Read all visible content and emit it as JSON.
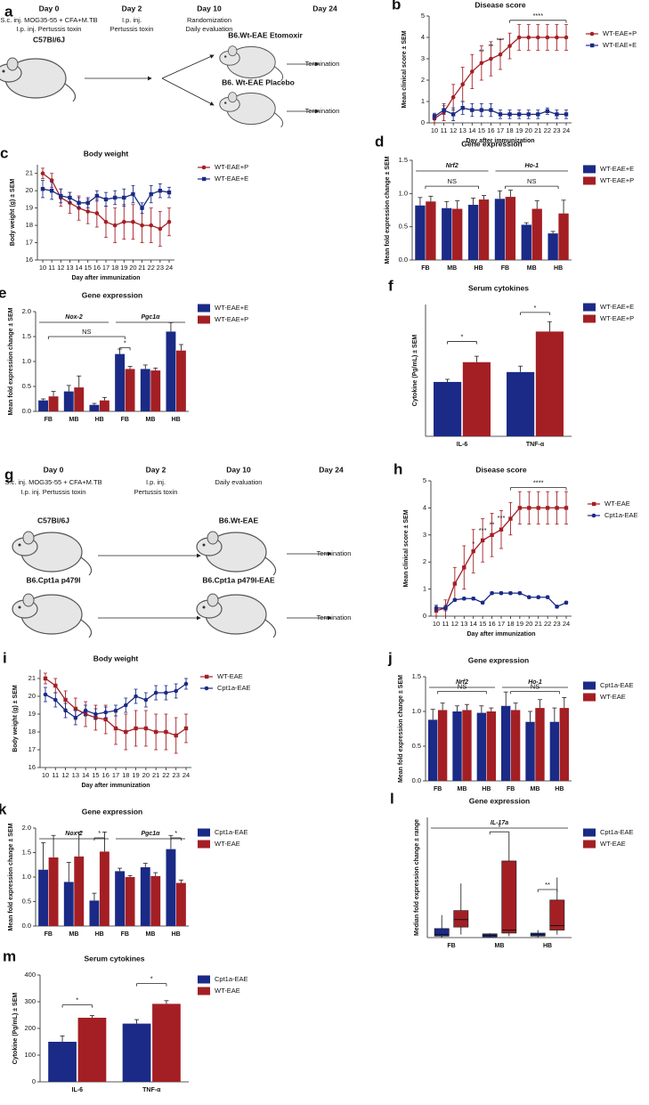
{
  "diagrams": [
    {
      "panel": "a",
      "texts": [
        "Day 0",
        "S.c. inj. MOG35-55 + CFA+M.TB",
        "I.p. inj. Pertussis toxin",
        "C57Bl/6J",
        "Day 2",
        "I.p. inj.",
        "Pertussis toxin",
        "Day 10",
        "Randomization",
        "Daily evaluation",
        "Day 24",
        "B6.Wt-EAE  Etomoxir",
        "B6. Wt-EAE  Placebo",
        "Termination",
        "Termination"
      ]
    },
    {
      "panel": "g",
      "texts": [
        "Day 0",
        "S.c. inj. MOG35-55 + CFA+M.TB",
        "I.p. inj. Pertussis toxin",
        "Day 2",
        "I.p. inj.",
        "Pertussis toxin",
        "Day 10",
        "Daily evaluation",
        "Day 24",
        "C57Bl/6J",
        "B6.Wt-EAE",
        "B6.Cpt1a p479I",
        "B6.Cpt1a p479I-EAE",
        "Termination",
        "Termination"
      ]
    }
  ],
  "chart_data": [
    {
      "type": "line",
      "panel": "b",
      "title": "Disease score",
      "x_label": "Day after immunization",
      "y_label": "Mean clinical score ± SEM",
      "x": [
        10,
        11,
        12,
        13,
        14,
        15,
        16,
        17,
        18,
        19,
        20,
        21,
        22,
        23,
        24
      ],
      "xlim": [
        10,
        24
      ],
      "xticks": [
        10,
        11,
        12,
        13,
        14,
        15,
        16,
        17,
        18,
        19,
        20,
        21,
        22,
        23,
        24
      ],
      "ylim": [
        0,
        5
      ],
      "yticks": [
        0,
        1,
        2,
        3,
        4,
        5
      ],
      "series": [
        {
          "name": "WT-EAE+P",
          "color": "#a31f24",
          "marker": "circle",
          "values": [
            0.2,
            0.5,
            1.2,
            1.8,
            2.4,
            2.8,
            3.0,
            3.2,
            3.6,
            4,
            4,
            4,
            4,
            4,
            4
          ],
          "errors": [
            0.2,
            0.4,
            0.6,
            0.8,
            0.8,
            0.8,
            0.8,
            0.7,
            0.6,
            0.6,
            0.6,
            0.6,
            0.6,
            0.6,
            0.6
          ]
        },
        {
          "name": "WT-EAE+E",
          "color": "#1a2a86",
          "marker": "square",
          "values": [
            0.3,
            0.6,
            0.4,
            0.7,
            0.6,
            0.6,
            0.6,
            0.4,
            0.4,
            0.4,
            0.4,
            0.4,
            0.55,
            0.4,
            0.4
          ],
          "errors": [
            0.15,
            0.2,
            0.3,
            0.3,
            0.3,
            0.3,
            0.3,
            0.2,
            0.2,
            0.2,
            0.2,
            0.2,
            0.15,
            0.2,
            0.2
          ]
        }
      ],
      "annotations": [
        "**",
        "**",
        "***",
        "****"
      ]
    },
    {
      "type": "line",
      "panel": "c",
      "title": "Body weight",
      "x_label": "Day after immunization",
      "y_label": "Body weight (g) ± SEM",
      "x": [
        10,
        11,
        12,
        13,
        14,
        15,
        16,
        17,
        18,
        19,
        20,
        21,
        22,
        23,
        24
      ],
      "xlim": [
        10,
        24
      ],
      "xticks": [
        10,
        11,
        12,
        13,
        14,
        15,
        16,
        17,
        18,
        19,
        20,
        21,
        22,
        23,
        24
      ],
      "ylim": [
        16,
        21.5
      ],
      "yticks": [
        16,
        17,
        18,
        19,
        20,
        21
      ],
      "series": [
        {
          "name": "WT-EAE+P",
          "color": "#a31f24",
          "marker": "circle",
          "values": [
            21.0,
            20.6,
            19.6,
            19.3,
            19.0,
            18.8,
            18.7,
            18.2,
            18.0,
            18.2,
            18.2,
            18.0,
            18.0,
            17.8,
            18.2
          ],
          "errors": [
            0.3,
            0.4,
            0.5,
            0.6,
            0.7,
            0.7,
            0.8,
            0.9,
            1.0,
            1.0,
            1.0,
            1.0,
            1.0,
            1.0,
            0.8
          ]
        },
        {
          "name": "WT-EAE+E",
          "color": "#1a2a86",
          "marker": "square",
          "values": [
            20.1,
            20.0,
            19.7,
            19.6,
            19.3,
            19.3,
            19.7,
            19.5,
            19.6,
            19.6,
            19.8,
            19.0,
            19.8,
            20.0,
            19.9
          ],
          "errors": [
            0.5,
            0.5,
            0.4,
            0.3,
            0.3,
            0.3,
            0.3,
            0.4,
            0.4,
            0.5,
            0.5,
            0.3,
            0.5,
            0.4,
            0.3
          ]
        }
      ],
      "annotations": []
    },
    {
      "type": "bar",
      "panel": "d",
      "title": "Gene expression",
      "y_label": "Mean fold expression change ± SEM",
      "categories": [
        "FB",
        "MB",
        "HB",
        "FB",
        "MB",
        "HB"
      ],
      "groups": [
        "Nrf2",
        "Ho-1"
      ],
      "ylim": [
        0,
        1.5
      ],
      "yticks": [
        {
          "value": 0,
          "label": "0.0"
        },
        {
          "value": 0.5,
          "label": "0.5"
        },
        {
          "value": 1,
          "label": "1.0"
        },
        {
          "value": 1.5,
          "label": "1.5"
        }
      ],
      "series": [
        {
          "name": "WT-EAE+E",
          "color": "#1a2a86",
          "values": [
            0.82,
            0.78,
            0.83,
            0.92,
            0.53,
            0.4
          ],
          "errors": [
            0.12,
            0.1,
            0.1,
            0.12,
            0.03,
            0.03
          ]
        },
        {
          "name": "WT-EAE+P",
          "color": "#a31f24",
          "values": [
            0.88,
            0.77,
            0.91,
            0.95,
            0.77,
            0.7
          ],
          "errors": [
            0.08,
            0.12,
            0.06,
            0.1,
            0.12,
            0.2
          ]
        }
      ],
      "annotations": [
        "NS",
        "NS"
      ]
    },
    {
      "type": "bar",
      "panel": "e",
      "title": "Gene expression",
      "y_label": "Mean fold expression change ± SEM",
      "categories": [
        "FB",
        "MB",
        "HB",
        "FB",
        "MB",
        "HB"
      ],
      "groups": [
        "Nox-2",
        "Pgc1α"
      ],
      "ylim": [
        0,
        2
      ],
      "yticks": [
        {
          "value": 0,
          "label": "0.0"
        },
        {
          "value": 0.5,
          "label": "0.5"
        },
        {
          "value": 1,
          "label": "1.0"
        },
        {
          "value": 1.5,
          "label": "1.5"
        },
        {
          "value": 2,
          "label": "2.0"
        }
      ],
      "series": [
        {
          "name": "WT-EAE+E",
          "color": "#1a2a86",
          "values": [
            0.22,
            0.4,
            0.13,
            1.15,
            0.85,
            1.6
          ],
          "errors": [
            0.03,
            0.12,
            0.03,
            0.1,
            0.08,
            0.18
          ]
        },
        {
          "name": "WT-EAE+P",
          "color": "#a31f24",
          "values": [
            0.3,
            0.48,
            0.22,
            0.85,
            0.82,
            1.22
          ],
          "errors": [
            0.1,
            0.23,
            0.06,
            0.05,
            0.05,
            0.12
          ]
        }
      ],
      "annotations": [
        "NS",
        "*"
      ]
    },
    {
      "type": "bar",
      "panel": "f",
      "title": "Serum cytokines",
      "y_label": "Cytokine (Pg/mL) ± SEM",
      "categories": [
        "IL-6",
        "TNF-α"
      ],
      "ylim": [
        0,
        400
      ],
      "series": [
        {
          "name": "WT-EAE+E",
          "color": "#1a2a86",
          "values": [
            165,
            195
          ],
          "errors": [
            8,
            18
          ]
        },
        {
          "name": "WT-EAE+P",
          "color": "#a31f24",
          "values": [
            225,
            318
          ],
          "errors": [
            18,
            30
          ]
        }
      ],
      "annotations": [
        "*",
        "*"
      ]
    },
    {
      "type": "line",
      "panel": "h",
      "title": "Disease score",
      "x_label": "Day after immunization",
      "y_label": "Mean clinical score ± SEM",
      "x": [
        10,
        11,
        12,
        13,
        14,
        15,
        16,
        17,
        18,
        19,
        20,
        21,
        22,
        23,
        24
      ],
      "xlim": [
        10,
        24
      ],
      "xticks": [
        10,
        11,
        12,
        13,
        14,
        15,
        16,
        17,
        18,
        19,
        20,
        21,
        22,
        23,
        24
      ],
      "ylim": [
        0,
        5
      ],
      "yticks": [
        0,
        1,
        2,
        3,
        4,
        5
      ],
      "series": [
        {
          "name": "WT-EAE",
          "color": "#a31f24",
          "marker": "square",
          "values": [
            0.2,
            0.3,
            1.2,
            1.8,
            2.4,
            2.8,
            3.0,
            3.2,
            3.6,
            4,
            4,
            4,
            4,
            4,
            4
          ],
          "errors": [
            0.2,
            0.3,
            0.6,
            0.8,
            0.8,
            0.8,
            0.8,
            0.7,
            0.6,
            0.6,
            0.6,
            0.6,
            0.6,
            0.6,
            0.6
          ]
        },
        {
          "name": "Cpt1a-EAE",
          "color": "#1a2a86",
          "marker": "circle",
          "values": [
            0.3,
            0.3,
            0.6,
            0.65,
            0.65,
            0.5,
            0.85,
            0.85,
            0.85,
            0.85,
            0.7,
            0.7,
            0.7,
            0.35,
            0.5
          ],
          "errors": [
            0.1,
            0.1,
            0.05,
            0.05,
            0.05,
            0.05,
            0.05,
            0.05,
            0.05,
            0.05,
            0.05,
            0.05,
            0.05,
            0.05,
            0.05
          ]
        }
      ],
      "annotations": [
        "*",
        "***",
        "**",
        "***",
        "****"
      ]
    },
    {
      "type": "line",
      "panel": "i",
      "title": "Body weight",
      "x_label": "Day after immunization",
      "y_label": "Body weight (g) ± SEM",
      "x": [
        10,
        11,
        12,
        13,
        14,
        15,
        16,
        17,
        18,
        19,
        20,
        21,
        22,
        23,
        24
      ],
      "xlim": [
        10,
        24
      ],
      "xticks": [
        10,
        11,
        12,
        13,
        14,
        15,
        16,
        17,
        18,
        19,
        20,
        21,
        22,
        23,
        24
      ],
      "ylim": [
        16,
        21.5
      ],
      "yticks": [
        16,
        17,
        18,
        19,
        20,
        21
      ],
      "series": [
        {
          "name": "WT-EAE",
          "color": "#a31f24",
          "marker": "square",
          "values": [
            21.0,
            20.6,
            19.8,
            19.3,
            19.0,
            18.8,
            18.7,
            18.2,
            18.0,
            18.2,
            18.2,
            18.0,
            18.0,
            17.8,
            18.2
          ],
          "errors": [
            0.3,
            0.4,
            0.5,
            0.6,
            0.7,
            0.7,
            0.8,
            0.9,
            1.0,
            1.0,
            1.0,
            1.0,
            1.0,
            1.0,
            0.8
          ]
        },
        {
          "name": "Cpt1a-EAE",
          "color": "#1a2a86",
          "marker": "circle",
          "values": [
            20.1,
            19.8,
            19.2,
            18.8,
            19.2,
            19.0,
            19.1,
            19.2,
            19.5,
            20.0,
            19.8,
            20.2,
            20.2,
            20.3,
            20.7
          ],
          "errors": [
            0.4,
            0.4,
            0.4,
            0.4,
            0.3,
            0.3,
            0.3,
            0.3,
            0.4,
            0.4,
            0.4,
            0.4,
            0.4,
            0.4,
            0.3
          ]
        }
      ],
      "annotations": []
    },
    {
      "type": "bar",
      "panel": "j",
      "title": "Gene expression",
      "y_label": "Mean fold expression change ± SEM",
      "categories": [
        "FB",
        "MB",
        "HB",
        "FB",
        "MB",
        "HB"
      ],
      "groups": [
        "Nrf2",
        "Ho-1"
      ],
      "ylim": [
        0,
        1.5
      ],
      "yticks": [
        {
          "value": 0,
          "label": "0.0"
        },
        {
          "value": 0.5,
          "label": "0.5"
        },
        {
          "value": 1,
          "label": "1.0"
        },
        {
          "value": 1.5,
          "label": "1.5"
        }
      ],
      "series": [
        {
          "name": "Cpt1a-EAE",
          "color": "#1a2a86",
          "values": [
            0.88,
            1.0,
            0.98,
            1.08,
            0.85,
            0.85
          ],
          "errors": [
            0.15,
            0.08,
            0.1,
            0.2,
            0.15,
            0.2
          ]
        },
        {
          "name": "WT-EAE",
          "color": "#a31f24",
          "values": [
            1.02,
            1.02,
            1.0,
            1.02,
            1.05,
            1.05
          ],
          "errors": [
            0.1,
            0.08,
            0.05,
            0.1,
            0.12,
            0.15
          ]
        }
      ],
      "annotations": [
        "NS",
        "NS"
      ]
    },
    {
      "type": "bar",
      "panel": "k",
      "title": "Gene expression",
      "y_label": "Mean fold expression change ± SEM",
      "categories": [
        "FB",
        "MB",
        "HB",
        "FB",
        "MB",
        "HB"
      ],
      "groups": [
        "Nox-2",
        "Pgc1α"
      ],
      "ylim": [
        0,
        2
      ],
      "yticks": [
        {
          "value": 0,
          "label": "0.0"
        },
        {
          "value": 0.5,
          "label": "0.5"
        },
        {
          "value": 1,
          "label": "1.0"
        },
        {
          "value": 1.5,
          "label": "1.5"
        },
        {
          "value": 2,
          "label": "2.0"
        }
      ],
      "series": [
        {
          "name": "Cpt1a-EAE",
          "color": "#1a2a86",
          "values": [
            1.15,
            0.9,
            0.52,
            1.12,
            1.2,
            1.57
          ],
          "errors": [
            0.55,
            0.4,
            0.15,
            0.06,
            0.08,
            0.28
          ]
        },
        {
          "name": "WT-EAE",
          "color": "#a31f24",
          "values": [
            1.4,
            1.42,
            1.52,
            1.0,
            1.02,
            0.88
          ],
          "errors": [
            0.45,
            0.5,
            0.4,
            0.03,
            0.07,
            0.06
          ]
        }
      ],
      "annotations": [
        "*",
        "*"
      ]
    },
    {
      "type": "box",
      "panel": "l",
      "title": "Gene expression",
      "y_label": "Median fold expression change ± range",
      "categories": [
        "FB",
        "MB",
        "HB"
      ],
      "groups": [
        "IL-17a"
      ],
      "ylim": [
        0,
        8
      ],
      "series": [
        {
          "name": "Cpt1a-EAE",
          "color": "#1a2a86",
          "min": [
            0,
            0,
            0
          ],
          "q1": [
            0.1,
            0.05,
            0.1
          ],
          "median": [
            0.2,
            0.15,
            0.2
          ],
          "q3": [
            0.6,
            0.25,
            0.3
          ],
          "max": [
            1.5,
            0.3,
            0.5
          ]
        },
        {
          "name": "WT-EAE",
          "color": "#a31f24",
          "min": [
            0.2,
            0.1,
            0.2
          ],
          "q1": [
            0.7,
            0.3,
            0.5
          ],
          "median": [
            1.2,
            0.5,
            0.8
          ],
          "q3": [
            1.8,
            5.1,
            2.5
          ],
          "max": [
            3.6,
            6.9,
            4.0
          ]
        }
      ],
      "annotations": [
        "*",
        "**"
      ]
    },
    {
      "type": "bar",
      "panel": "m",
      "title": "Serum cytokines",
      "y_label": "Cytokine (Pg/mL) ± SEM",
      "categories": [
        "IL-6",
        "TNF-α"
      ],
      "ylim": [
        0,
        400
      ],
      "yticks": [
        0,
        100,
        200,
        300,
        400
      ],
      "series": [
        {
          "name": "Cpt1a-EAE",
          "color": "#1a2a86",
          "values": [
            150,
            218
          ],
          "errors": [
            22,
            15
          ]
        },
        {
          "name": "WT-EAE",
          "color": "#a31f24",
          "values": [
            240,
            292
          ],
          "errors": [
            8,
            12
          ]
        }
      ],
      "annotations": [
        "*",
        "*"
      ]
    }
  ]
}
